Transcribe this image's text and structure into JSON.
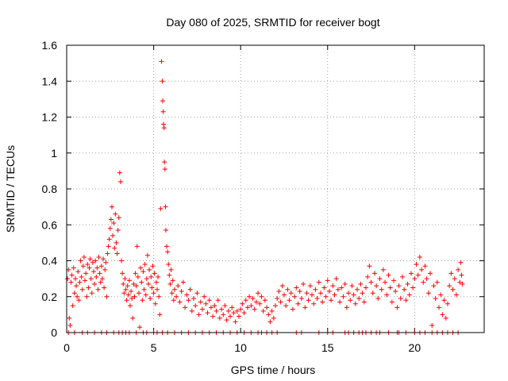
{
  "chart_data": {
    "type": "scatter",
    "title": "Day 080 of 2025, SRMTID for receiver bogt",
    "xlabel": "GPS time / hours",
    "ylabel": "SRMTID / TECUs",
    "xlim": [
      0,
      24
    ],
    "ylim": [
      0,
      1.6
    ],
    "x_ticks": [
      0,
      5,
      10,
      15,
      20
    ],
    "x_tick_labels": [
      "0",
      "5",
      "10",
      "15",
      "20"
    ],
    "y_ticks": [
      0,
      0.2,
      0.4,
      0.6,
      0.8,
      1.0,
      1.2,
      1.4,
      1.6
    ],
    "y_tick_labels": [
      "0",
      "0.2",
      "0.4",
      "0.6",
      "0.8",
      "1",
      "1.2",
      "1.4",
      "1.6"
    ],
    "grid": true,
    "marker": "plus",
    "series": [
      {
        "name": "SRMTID",
        "color": "#ff0000",
        "points": [
          [
            0.05,
            0.3
          ],
          [
            0.1,
            0.35
          ],
          [
            0.15,
            0.08
          ],
          [
            0.2,
            0.04
          ],
          [
            0.25,
            0.28
          ],
          [
            0.3,
            0.32
          ],
          [
            0.35,
            0.15
          ],
          [
            0.4,
            0.36
          ],
          [
            0.45,
            0.22
          ],
          [
            0.5,
            0.3
          ],
          [
            0.55,
            0.26
          ],
          [
            0.6,
            0.2
          ],
          [
            0.65,
            0.34
          ],
          [
            0.7,
            0.18
          ],
          [
            0.75,
            0.28
          ],
          [
            0.8,
            0.4
          ],
          [
            0.85,
            0.31
          ],
          [
            0.9,
            0.24
          ],
          [
            0.95,
            0.37
          ],
          [
            1.0,
            0.42
          ],
          [
            1.05,
            0.29
          ],
          [
            1.1,
            0.33
          ],
          [
            1.15,
            0.2
          ],
          [
            1.2,
            0.38
          ],
          [
            1.25,
            0.25
          ],
          [
            1.3,
            0.36
          ],
          [
            1.35,
            0.41
          ],
          [
            1.4,
            0.3
          ],
          [
            1.45,
            0.22
          ],
          [
            1.5,
            0.39
          ],
          [
            1.55,
            0.34
          ],
          [
            1.6,
            0.27
          ],
          [
            1.65,
            0.4
          ],
          [
            1.7,
            0.31
          ],
          [
            1.75,
            0.36
          ],
          [
            1.8,
            0.24
          ],
          [
            1.85,
            0.42
          ],
          [
            1.9,
            0.33
          ],
          [
            1.95,
            0.28
          ],
          [
            2.0,
            0.37
          ],
          [
            2.05,
            0.3
          ],
          [
            2.1,
            0.41
          ],
          [
            2.15,
            0.25
          ],
          [
            2.2,
            0.35
          ],
          [
            2.25,
            0.39
          ],
          [
            2.3,
            0.2
          ],
          [
            2.35,
            0.44
          ],
          [
            2.4,
            0.48
          ],
          [
            2.45,
            0.52
          ],
          [
            2.5,
            0.58
          ],
          [
            2.55,
            0.63
          ],
          [
            2.6,
            0.7
          ],
          [
            2.65,
            0.54
          ],
          [
            2.7,
            0.61
          ],
          [
            2.75,
            0.47
          ],
          [
            2.8,
            0.66
          ],
          [
            2.85,
            0.5
          ],
          [
            2.9,
            0.44
          ],
          [
            2.95,
            0.57
          ],
          [
            3.0,
            0.64
          ],
          [
            3.05,
            0.89
          ],
          [
            3.1,
            0.84
          ],
          [
            3.15,
            0.4
          ],
          [
            3.2,
            0.33
          ],
          [
            3.25,
            0.27
          ],
          [
            3.3,
            0.22
          ],
          [
            3.35,
            0.3
          ],
          [
            3.4,
            0.24
          ],
          [
            3.45,
            0.18
          ],
          [
            3.5,
            0.26
          ],
          [
            3.55,
            0.21
          ],
          [
            3.6,
            0.29
          ],
          [
            3.65,
            0.15
          ],
          [
            3.7,
            0.23
          ],
          [
            3.75,
            0.19
          ],
          [
            3.8,
            0.08
          ],
          [
            3.85,
            0.27
          ],
          [
            3.9,
            0.2
          ],
          [
            3.95,
            0.33
          ],
          [
            4.0,
            0.26
          ],
          [
            4.05,
            0.48
          ],
          [
            4.1,
            0.31
          ],
          [
            4.15,
            0.22
          ],
          [
            4.2,
            0.03
          ],
          [
            4.25,
            0.36
          ],
          [
            4.3,
            0.28
          ],
          [
            4.35,
            0.18
          ],
          [
            4.4,
            0.34
          ],
          [
            4.45,
            0.24
          ],
          [
            4.5,
            0.38
          ],
          [
            4.55,
            0.21
          ],
          [
            4.6,
            0.3
          ],
          [
            4.65,
            0.43
          ],
          [
            4.7,
            0.27
          ],
          [
            4.75,
            0.35
          ],
          [
            4.8,
            0.19
          ],
          [
            4.85,
            0.31
          ],
          [
            4.9,
            0.25
          ],
          [
            4.95,
            0.37
          ],
          [
            5.0,
            0.22
          ],
          [
            5.05,
            0.33
          ],
          [
            5.1,
            0.16
          ],
          [
            5.15,
            0.28
          ],
          [
            5.2,
            0.24
          ],
          [
            5.25,
            0.31
          ],
          [
            5.3,
            0.2
          ],
          [
            5.35,
            0.1
          ],
          [
            5.4,
            0.69
          ],
          [
            5.45,
            1.51
          ],
          [
            5.5,
            1.4
          ],
          [
            5.52,
            1.29
          ],
          [
            5.55,
            1.23
          ],
          [
            5.57,
            1.16
          ],
          [
            5.6,
            1.14
          ],
          [
            5.62,
            0.95
          ],
          [
            5.65,
            0.91
          ],
          [
            5.68,
            0.7
          ],
          [
            5.7,
            0.57
          ],
          [
            5.75,
            0.48
          ],
          [
            5.8,
            0.45
          ],
          [
            5.85,
            0.38
          ],
          [
            5.9,
            0.32
          ],
          [
            5.95,
            0.27
          ],
          [
            6.0,
            0.35
          ],
          [
            6.05,
            0.22
          ],
          [
            6.1,
            0.29
          ],
          [
            6.15,
            0.18
          ],
          [
            6.2,
            0.24
          ],
          [
            6.3,
            0.2
          ],
          [
            6.4,
            0.26
          ],
          [
            6.5,
            0.17
          ],
          [
            6.6,
            0.23
          ],
          [
            6.7,
            0.28
          ],
          [
            6.8,
            0.14
          ],
          [
            6.9,
            0.21
          ],
          [
            7.0,
            0.18
          ],
          [
            7.1,
            0.24
          ],
          [
            7.2,
            0.12
          ],
          [
            7.3,
            0.19
          ],
          [
            7.4,
            0.15
          ],
          [
            7.5,
            0.22
          ],
          [
            7.6,
            0.1
          ],
          [
            7.7,
            0.17
          ],
          [
            7.8,
            0.13
          ],
          [
            7.9,
            0.2
          ],
          [
            8.0,
            0.16
          ],
          [
            8.1,
            0.11
          ],
          [
            8.2,
            0.18
          ],
          [
            8.3,
            0.14
          ],
          [
            8.4,
            0.09
          ],
          [
            8.5,
            0.15
          ],
          [
            8.6,
            0.12
          ],
          [
            8.7,
            0.18
          ],
          [
            8.8,
            0.08
          ],
          [
            8.9,
            0.13
          ],
          [
            9.0,
            0.1
          ],
          [
            9.1,
            0.15
          ],
          [
            9.2,
            0.07
          ],
          [
            9.3,
            0.12
          ],
          [
            9.4,
            0.09
          ],
          [
            9.5,
            0.14
          ],
          [
            9.6,
            0.11
          ],
          [
            9.7,
            0.06
          ],
          [
            9.8,
            0.12
          ],
          [
            9.9,
            0.09
          ],
          [
            10.0,
            0.13
          ],
          [
            10.1,
            0.16
          ],
          [
            10.2,
            0.11
          ],
          [
            10.3,
            0.18
          ],
          [
            10.4,
            0.14
          ],
          [
            10.5,
            0.2
          ],
          [
            10.6,
            0.15
          ],
          [
            10.7,
            0.19
          ],
          [
            10.8,
            0.13
          ],
          [
            10.9,
            0.17
          ],
          [
            11.0,
            0.22
          ],
          [
            11.1,
            0.16
          ],
          [
            11.2,
            0.2
          ],
          [
            11.3,
            0.12
          ],
          [
            11.4,
            0.18
          ],
          [
            11.5,
            0.14
          ],
          [
            11.6,
            0.1
          ],
          [
            11.7,
            0.06
          ],
          [
            11.8,
            0.12
          ],
          [
            11.9,
            0.08
          ],
          [
            12.0,
            0.15
          ],
          [
            12.1,
            0.19
          ],
          [
            12.2,
            0.23
          ],
          [
            12.3,
            0.17
          ],
          [
            12.4,
            0.26
          ],
          [
            12.5,
            0.21
          ],
          [
            12.6,
            0.15
          ],
          [
            12.7,
            0.24
          ],
          [
            12.8,
            0.18
          ],
          [
            12.9,
            0.22
          ],
          [
            13.0,
            0.13
          ],
          [
            13.1,
            0.2
          ],
          [
            13.2,
            0.25
          ],
          [
            13.3,
            0.16
          ],
          [
            13.4,
            0.23
          ],
          [
            13.5,
            0.19
          ],
          [
            13.6,
            0.27
          ],
          [
            13.7,
            0.14
          ],
          [
            13.8,
            0.22
          ],
          [
            13.9,
            0.18
          ],
          [
            14.0,
            0.26
          ],
          [
            14.1,
            0.21
          ],
          [
            14.2,
            0.16
          ],
          [
            14.3,
            0.24
          ],
          [
            14.4,
            0.19
          ],
          [
            14.5,
            0.28
          ],
          [
            14.6,
            0.22
          ],
          [
            14.7,
            0.17
          ],
          [
            14.8,
            0.25
          ],
          [
            14.9,
            0.2
          ],
          [
            15.0,
            0.29
          ],
          [
            15.1,
            0.23
          ],
          [
            15.2,
            0.18
          ],
          [
            15.3,
            0.26
          ],
          [
            15.4,
            0.21
          ],
          [
            15.5,
            0.3
          ],
          [
            15.6,
            0.24
          ],
          [
            15.7,
            0.17
          ],
          [
            15.8,
            0.25
          ],
          [
            15.9,
            0.2
          ],
          [
            16.0,
            0.27
          ],
          [
            16.1,
            0.14
          ],
          [
            16.2,
            0.22
          ],
          [
            16.3,
            0.18
          ],
          [
            16.4,
            0.26
          ],
          [
            16.5,
            0.21
          ],
          [
            16.6,
            0.16
          ],
          [
            16.7,
            0.24
          ],
          [
            16.8,
            0.19
          ],
          [
            16.9,
            0.27
          ],
          [
            17.0,
            0.22
          ],
          [
            17.1,
            0.17
          ],
          [
            17.2,
            0.25
          ],
          [
            17.3,
            0.31
          ],
          [
            17.4,
            0.37
          ],
          [
            17.5,
            0.28
          ],
          [
            17.6,
            0.22
          ],
          [
            17.7,
            0.33
          ],
          [
            17.8,
            0.26
          ],
          [
            17.9,
            0.19
          ],
          [
            18.0,
            0.3
          ],
          [
            18.1,
            0.24
          ],
          [
            18.2,
            0.35
          ],
          [
            18.3,
            0.28
          ],
          [
            18.4,
            0.21
          ],
          [
            18.5,
            0.32
          ],
          [
            18.6,
            0.25
          ],
          [
            18.7,
            0.17
          ],
          [
            18.8,
            0.29
          ],
          [
            18.9,
            0.23
          ],
          [
            19.0,
            0.14
          ],
          [
            19.1,
            0.26
          ],
          [
            19.2,
            0.19
          ],
          [
            19.3,
            0.31
          ],
          [
            19.4,
            0.24
          ],
          [
            19.5,
            0.18
          ],
          [
            19.6,
            0.27
          ],
          [
            19.7,
            0.21
          ],
          [
            19.8,
            0.33
          ],
          [
            19.9,
            0.25
          ],
          [
            20.0,
            0.3
          ],
          [
            20.1,
            0.38
          ],
          [
            20.2,
            0.32
          ],
          [
            20.3,
            0.42
          ],
          [
            20.4,
            0.35
          ],
          [
            20.5,
            0.28
          ],
          [
            20.6,
            0.37
          ],
          [
            20.7,
            0.3
          ],
          [
            20.8,
            0.22
          ],
          [
            20.9,
            0.33
          ],
          [
            21.0,
            0.04
          ],
          [
            21.1,
            0.26
          ],
          [
            21.2,
            0.19
          ],
          [
            21.3,
            0.28
          ],
          [
            21.4,
            0.14
          ],
          [
            21.5,
            0.21
          ],
          [
            21.6,
            0.1
          ],
          [
            21.7,
            0.18
          ],
          [
            21.8,
            0.08
          ],
          [
            21.9,
            0.16
          ],
          [
            22.0,
            0.26
          ],
          [
            22.1,
            0.33
          ],
          [
            22.2,
            0.24
          ],
          [
            22.3,
            0.3
          ],
          [
            22.4,
            0.21
          ],
          [
            22.5,
            0.35
          ],
          [
            22.6,
            0.28
          ],
          [
            22.65,
            0.39
          ],
          [
            22.7,
            0.32
          ],
          [
            22.75,
            0.27
          ]
        ]
      },
      {
        "name": "zero-values",
        "color": "#ff0000",
        "x_at_zero": [
          0.1,
          0.45,
          0.9,
          1.2,
          1.6,
          2.0,
          2.3,
          2.7,
          3.0,
          3.2,
          3.4,
          3.6,
          4.0,
          4.4,
          4.6,
          5.0,
          5.2,
          5.5,
          5.8,
          6.2,
          6.6,
          7.0,
          7.4,
          7.8,
          8.2,
          8.6,
          9.0,
          9.4,
          9.8,
          10.2,
          10.6,
          11.0,
          11.2,
          11.5,
          11.8,
          12.1,
          13.2,
          13.5,
          14.5,
          15.0,
          15.3,
          16.0,
          16.2,
          16.5,
          16.8,
          17.0,
          17.2,
          17.5,
          17.8,
          18.0,
          18.5,
          19.0,
          19.1,
          19.5,
          20.0,
          20.3,
          20.6,
          21.0,
          21.3,
          21.6,
          21.9,
          22.2,
          22.5
        ]
      }
    ]
  }
}
